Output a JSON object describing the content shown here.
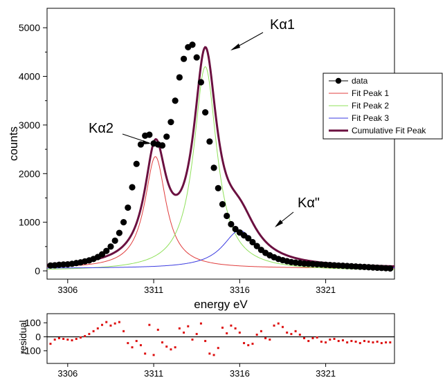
{
  "chart_data": [
    {
      "type": "line",
      "xlabel": "energy eV",
      "ylabel": "counts",
      "xlim": [
        3304.8,
        3325.0
      ],
      "ylim": [
        -170,
        5400
      ],
      "x_ticks": [
        3306,
        3311,
        3316,
        3321
      ],
      "y_ticks": [
        0,
        1000,
        2000,
        3000,
        4000,
        5000
      ],
      "grid": false,
      "legend_position": "right",
      "series": [
        {
          "name": "data",
          "style": "markers",
          "color": "#000000",
          "x": [
            3305.0,
            3305.25,
            3305.5,
            3305.75,
            3306.0,
            3306.25,
            3306.5,
            3306.75,
            3307.0,
            3307.25,
            3307.5,
            3307.75,
            3308.0,
            3308.25,
            3308.5,
            3308.75,
            3309.0,
            3309.25,
            3309.5,
            3309.75,
            3310.0,
            3310.25,
            3310.5,
            3310.75,
            3311.0,
            3311.25,
            3311.5,
            3311.75,
            3312.0,
            3312.25,
            3312.5,
            3312.75,
            3313.0,
            3313.25,
            3313.5,
            3313.75,
            3314.0,
            3314.25,
            3314.5,
            3314.75,
            3315.0,
            3315.25,
            3315.5,
            3315.75,
            3316.0,
            3316.25,
            3316.5,
            3316.75,
            3317.0,
            3317.25,
            3317.5,
            3317.75,
            3318.0,
            3318.25,
            3318.5,
            3318.75,
            3319.0,
            3319.25,
            3319.5,
            3319.75,
            3320.0,
            3320.25,
            3320.5,
            3320.75,
            3321.0,
            3321.25,
            3321.5,
            3321.75,
            3322.0,
            3322.25,
            3322.5,
            3322.75,
            3323.0,
            3323.25,
            3323.5,
            3323.75,
            3324.0,
            3324.25,
            3324.5,
            3324.75
          ],
          "y": [
            110,
            115,
            125,
            130,
            135,
            145,
            160,
            175,
            195,
            215,
            245,
            285,
            340,
            410,
            500,
            620,
            780,
            1000,
            1300,
            1720,
            2200,
            2600,
            2780,
            2800,
            2620,
            2600,
            2580,
            2760,
            3060,
            3500,
            3980,
            4360,
            4600,
            4650,
            4390,
            3880,
            3260,
            2660,
            2120,
            1700,
            1370,
            1130,
            960,
            860,
            790,
            730,
            670,
            590,
            510,
            430,
            370,
            320,
            280,
            245,
            220,
            200,
            180,
            170,
            160,
            150,
            145,
            140,
            135,
            130,
            125,
            120,
            115,
            110,
            105,
            100,
            95,
            90,
            85,
            80,
            75,
            70,
            65,
            60,
            55,
            50
          ]
        },
        {
          "name": "Fit Peak 1",
          "style": "line",
          "color": "#e03c3c",
          "model": "lorentzian",
          "baseline": 50,
          "center": 3311.1,
          "height": 2300,
          "hwhm": 0.75
        },
        {
          "name": "Fit Peak 2",
          "style": "line",
          "color": "#8fe05a",
          "model": "lorentzian",
          "baseline": 0,
          "center": 3314.0,
          "height": 4200,
          "hwhm": 0.82
        },
        {
          "name": "Fit Peak 3",
          "style": "line",
          "color": "#3a3ae0",
          "model": "lorentzian",
          "baseline": 50,
          "center": 3316.0,
          "height": 780,
          "hwhm": 1.2
        },
        {
          "name": "Cumulative Fit Peak",
          "style": "thick-line",
          "color": "#6b1040",
          "model": "sum",
          "baseline": 50
        }
      ],
      "annotations": [
        {
          "label": "Kα1",
          "x": 3314.0,
          "y": 4600
        },
        {
          "label": "Kα2",
          "x": 3310.6,
          "y": 2800
        },
        {
          "label": "Kα\"",
          "x": 3317.0,
          "y": 780
        }
      ]
    },
    {
      "type": "scatter",
      "ylabel": "residual",
      "xlim": [
        3304.8,
        3325.0
      ],
      "ylim": [
        -190,
        165
      ],
      "x_ticks": [
        3306,
        3311,
        3316,
        3321
      ],
      "y_ticks": [
        -100,
        0,
        100
      ],
      "zero_line": true,
      "color": "#dd1111",
      "x": [
        3305.0,
        3305.25,
        3305.5,
        3305.75,
        3306.0,
        3306.25,
        3306.5,
        3306.75,
        3307.0,
        3307.25,
        3307.5,
        3307.75,
        3308.0,
        3308.25,
        3308.5,
        3308.75,
        3309.0,
        3309.25,
        3309.5,
        3309.75,
        3310.0,
        3310.25,
        3310.5,
        3310.75,
        3311.0,
        3311.25,
        3311.5,
        3311.75,
        3312.0,
        3312.25,
        3312.5,
        3312.75,
        3313.0,
        3313.25,
        3313.5,
        3313.75,
        3314.0,
        3314.25,
        3314.5,
        3314.75,
        3315.0,
        3315.25,
        3315.5,
        3315.75,
        3316.0,
        3316.25,
        3316.5,
        3316.75,
        3317.0,
        3317.25,
        3317.5,
        3317.75,
        3318.0,
        3318.25,
        3318.5,
        3318.75,
        3319.0,
        3319.25,
        3319.5,
        3319.75,
        3320.0,
        3320.25,
        3320.5,
        3320.75,
        3321.0,
        3321.25,
        3321.5,
        3321.75,
        3322.0,
        3322.25,
        3322.5,
        3322.75,
        3323.0,
        3323.25,
        3323.5,
        3323.75,
        3324.0,
        3324.25,
        3324.5,
        3324.75
      ],
      "y": [
        -50,
        -20,
        -10,
        -15,
        -20,
        -25,
        -15,
        -5,
        5,
        20,
        40,
        60,
        85,
        105,
        80,
        95,
        105,
        40,
        -45,
        -75,
        -30,
        -60,
        -120,
        85,
        -130,
        50,
        -40,
        -70,
        -90,
        -75,
        60,
        30,
        75,
        -20,
        20,
        95,
        -30,
        -120,
        -130,
        -80,
        65,
        25,
        80,
        60,
        30,
        -45,
        -60,
        -50,
        15,
        40,
        -10,
        -20,
        80,
        95,
        70,
        30,
        20,
        40,
        15,
        -10,
        -30,
        -10,
        -5,
        -35,
        -40,
        -20,
        -15,
        -30,
        -25,
        -40,
        -30,
        -35,
        -45,
        -30,
        -35,
        -40,
        -35,
        -45,
        -40,
        -40
      ]
    }
  ]
}
